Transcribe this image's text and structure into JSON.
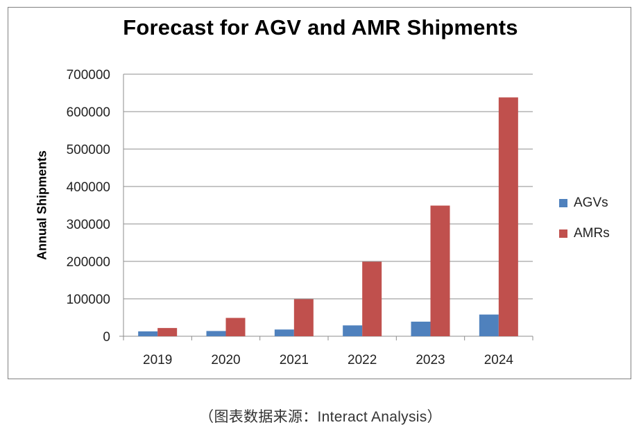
{
  "chart_data": {
    "type": "bar",
    "title": "Forecast for AGV and AMR Shipments",
    "ylabel": "Annual Shipments",
    "xlabel": "",
    "categories": [
      "2019",
      "2020",
      "2021",
      "2022",
      "2023",
      "2024"
    ],
    "series": [
      {
        "name": "AGVs",
        "color": "#4f81bd",
        "values": [
          13000,
          14000,
          18000,
          29000,
          39000,
          58000
        ]
      },
      {
        "name": "AMRs",
        "color": "#c0504d",
        "values": [
          22000,
          49000,
          99000,
          199000,
          349000,
          638000
        ]
      }
    ],
    "ylim": [
      0,
      700000
    ],
    "yticks": [
      "0",
      "100000",
      "200000",
      "300000",
      "400000",
      "500000",
      "600000",
      "700000"
    ],
    "grid": true,
    "legend": "right"
  },
  "caption": "（图表数据来源：Interact Analysis）"
}
